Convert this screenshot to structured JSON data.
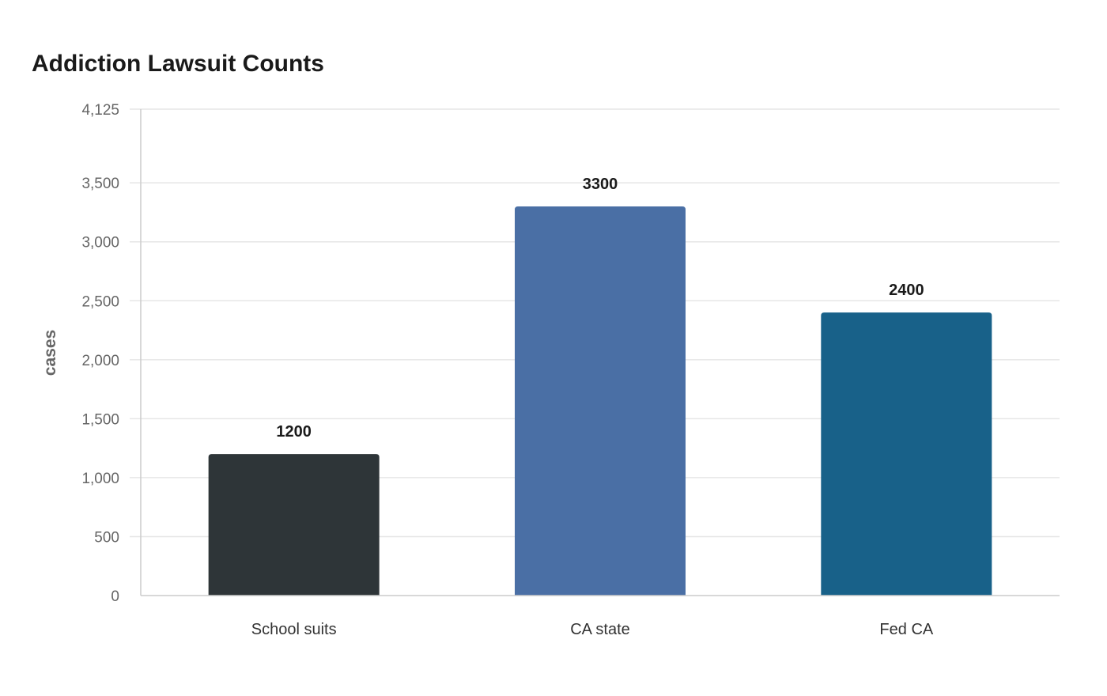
{
  "chart_data": {
    "type": "bar",
    "title": "Addiction Lawsuit Counts",
    "xlabel": "",
    "ylabel": "cases",
    "categories": [
      "School suits",
      "CA state",
      "Fed CA"
    ],
    "values": [
      1200,
      3300,
      2400
    ],
    "data_labels": [
      "1200",
      "3300",
      "2400"
    ],
    "colors": [
      "#2e3538",
      "#4a6fa5",
      "#186189"
    ],
    "ylim": [
      0,
      4125
    ],
    "yticks": [
      0,
      500,
      1000,
      1500,
      2000,
      2500,
      3000,
      3500,
      4125
    ],
    "ytick_labels": [
      "0",
      "500",
      "1,000",
      "1,500",
      "2,000",
      "2,500",
      "3,000",
      "3,500",
      "4,125"
    ],
    "grid": true,
    "legend": "none"
  }
}
